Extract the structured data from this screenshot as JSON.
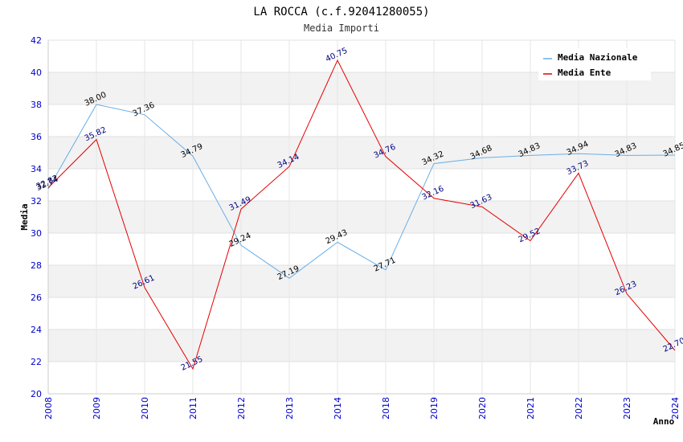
{
  "chart_data": {
    "type": "line",
    "title": "LA ROCCA (c.f.92041280055)",
    "subtitle": "Media Importi",
    "xlabel": "Anno",
    "ylabel": "Media",
    "ylim": [
      20,
      42
    ],
    "yticks": [
      "20",
      "22",
      "24",
      "26",
      "28",
      "30",
      "32",
      "34",
      "36",
      "38",
      "40",
      "42"
    ],
    "categories": [
      "2008",
      "2009",
      "2010",
      "2011",
      "2012",
      "2013",
      "2014",
      "2018",
      "2019",
      "2020",
      "2021",
      "2022",
      "2023",
      "2024"
    ],
    "series": [
      {
        "name": "Media Nazionale",
        "color": "#6aaee6",
        "values": [
          32.74,
          38.0,
          37.36,
          34.79,
          29.24,
          27.19,
          29.43,
          27.71,
          34.32,
          34.68,
          34.83,
          34.94,
          34.83,
          34.85
        ],
        "labels": [
          "32.74",
          "38.00",
          "37.36",
          "34.79",
          "29.24",
          "27.19",
          "29.43",
          "27.71",
          "34.32",
          "34.68",
          "34.83",
          "34.94",
          "34.83",
          "34.85"
        ]
      },
      {
        "name": "Media Ente",
        "color": "#e60000",
        "values": [
          32.82,
          35.82,
          26.61,
          21.55,
          31.49,
          34.14,
          40.75,
          34.76,
          32.16,
          31.63,
          29.52,
          33.73,
          26.23,
          22.7
        ],
        "labels": [
          "32.82",
          "35.82",
          "26.61",
          "21.55",
          "31.49",
          "34.14",
          "40.75",
          "34.76",
          "32.16",
          "31.63",
          "29.52",
          "33.73",
          "26.23",
          "22.70"
        ]
      }
    ],
    "legend_position": "top-right",
    "grid": true
  }
}
